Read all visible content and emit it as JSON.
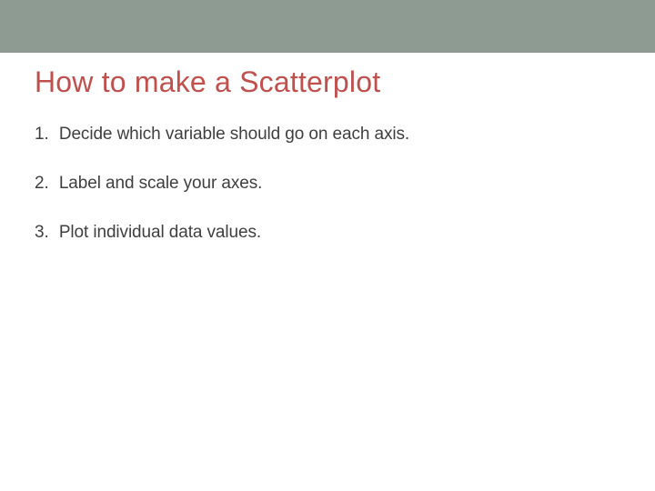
{
  "title": "How to make a Scatterplot",
  "title_color": "#c0504d",
  "title_fontsize": 32,
  "top_bar_color": "#8d9b92",
  "body_color": "#3f3f3f",
  "body_fontsize": 19,
  "background_color": "#ffffff",
  "items": [
    {
      "num": "1.",
      "text": "Decide which variable should go on each axis."
    },
    {
      "num": "2.",
      "text": "Label and scale your axes."
    },
    {
      "num": "3.",
      "text": "Plot individual data values."
    }
  ]
}
